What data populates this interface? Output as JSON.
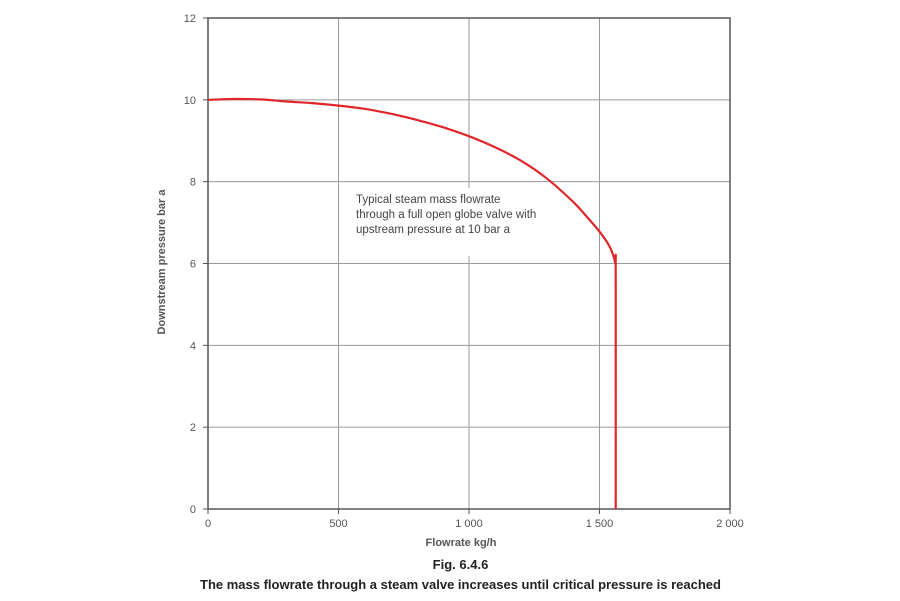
{
  "caption": {
    "number": "Fig. 6.4.6",
    "text": "The mass flowrate through a steam valve increases until critical pressure is reached"
  },
  "chart_data": {
    "type": "line",
    "xlabel": "Flowrate kg/h",
    "ylabel": "Downstream pressure bar a",
    "xlim": [
      0,
      2000
    ],
    "ylim": [
      0,
      12
    ],
    "x_ticks": [
      0,
      500,
      1000,
      1500,
      2000
    ],
    "x_tick_labels": [
      "0",
      "500",
      "1 000",
      "1 500",
      "2 000"
    ],
    "y_ticks": [
      0,
      2,
      4,
      6,
      8,
      10,
      12
    ],
    "y_tick_labels": [
      "0",
      "2",
      "4",
      "6",
      "8",
      "10",
      "12"
    ],
    "grid": true,
    "annotation": {
      "lines": [
        "Typical steam mass flowrate",
        "through a full open globe valve with",
        "upstream pressure at 10 bar a"
      ]
    },
    "series": [
      {
        "color": "#e0262b",
        "points": [
          [
            0,
            10.0
          ],
          [
            100,
            10.02
          ],
          [
            200,
            10.01
          ],
          [
            300,
            9.96
          ],
          [
            400,
            9.92
          ],
          [
            500,
            9.86
          ],
          [
            600,
            9.78
          ],
          [
            700,
            9.66
          ],
          [
            800,
            9.51
          ],
          [
            900,
            9.33
          ],
          [
            1000,
            9.11
          ],
          [
            1100,
            8.84
          ],
          [
            1200,
            8.51
          ],
          [
            1300,
            8.07
          ],
          [
            1400,
            7.5
          ],
          [
            1450,
            7.15
          ],
          [
            1500,
            6.78
          ],
          [
            1540,
            6.4
          ],
          [
            1560,
            6.02
          ],
          [
            1562,
            5.7
          ],
          [
            1562,
            0
          ]
        ]
      }
    ]
  }
}
